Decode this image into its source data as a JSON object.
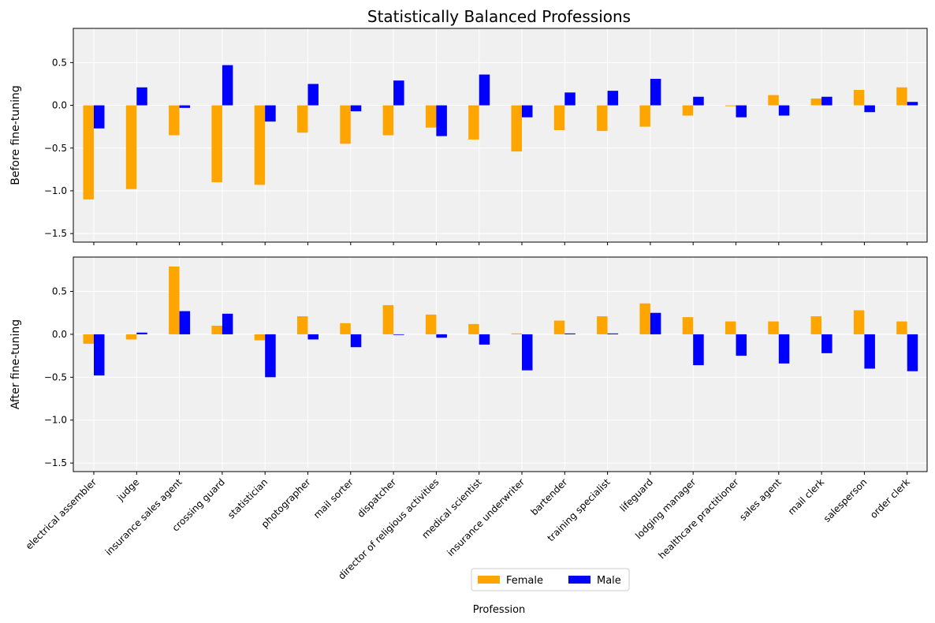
{
  "chart_data": {
    "type": "bar",
    "title": "Statistically Balanced Professions",
    "xlabel": "Profession",
    "categories": [
      "electrical assembler",
      "judge",
      "insurance sales agent",
      "crossing guard",
      "statistician",
      "photographer",
      "mail sorter",
      "dispatcher",
      "director of religious activities",
      "medical scientist",
      "insurance underwriter",
      "bartender",
      "training specialist",
      "lifeguard",
      "lodging manager",
      "healthcare practitioner",
      "sales agent",
      "mail clerk",
      "salesperson",
      "order clerk"
    ],
    "ylim": [
      -1.6,
      0.9
    ],
    "yticks": [
      "−1.5",
      "−1.0",
      "−0.5",
      "0.0",
      "0.5"
    ],
    "ytick_values": [
      -1.5,
      -1.0,
      -0.5,
      0.0,
      0.5
    ],
    "grid": true,
    "legend_placement": "bottom-center",
    "colors": {
      "Female": "#ffa500",
      "Male": "#0000ff",
      "panel_bg": "#f0f0f0"
    },
    "legend": [
      {
        "name": "Female"
      },
      {
        "name": "Male"
      }
    ],
    "panels": [
      {
        "ylabel": "Before fine-tuning",
        "series": [
          {
            "name": "Female",
            "values": [
              -1.1,
              -0.98,
              -0.35,
              -0.9,
              -0.93,
              -0.32,
              -0.45,
              -0.35,
              -0.26,
              -0.4,
              -0.54,
              -0.29,
              -0.3,
              -0.25,
              -0.12,
              -0.01,
              0.12,
              0.08,
              0.18,
              0.21
            ]
          },
          {
            "name": "Male",
            "values": [
              -0.27,
              0.21,
              -0.03,
              0.47,
              -0.19,
              0.25,
              -0.07,
              0.29,
              -0.36,
              0.36,
              -0.14,
              0.15,
              0.17,
              0.31,
              0.1,
              -0.14,
              -0.12,
              0.1,
              -0.08,
              0.04
            ]
          }
        ]
      },
      {
        "ylabel": "After fine-tuning",
        "series": [
          {
            "name": "Female",
            "values": [
              -0.11,
              -0.06,
              0.79,
              0.1,
              -0.07,
              0.21,
              0.13,
              0.34,
              0.23,
              0.12,
              0.01,
              0.16,
              0.21,
              0.36,
              0.2,
              0.15,
              0.15,
              0.21,
              0.28,
              0.15
            ]
          },
          {
            "name": "Male",
            "values": [
              -0.48,
              0.02,
              0.27,
              0.24,
              -0.5,
              -0.06,
              -0.15,
              0.0,
              -0.04,
              -0.12,
              -0.42,
              0.01,
              0.01,
              0.25,
              -0.36,
              -0.25,
              -0.34,
              -0.22,
              -0.4,
              -0.43
            ]
          }
        ]
      }
    ]
  }
}
